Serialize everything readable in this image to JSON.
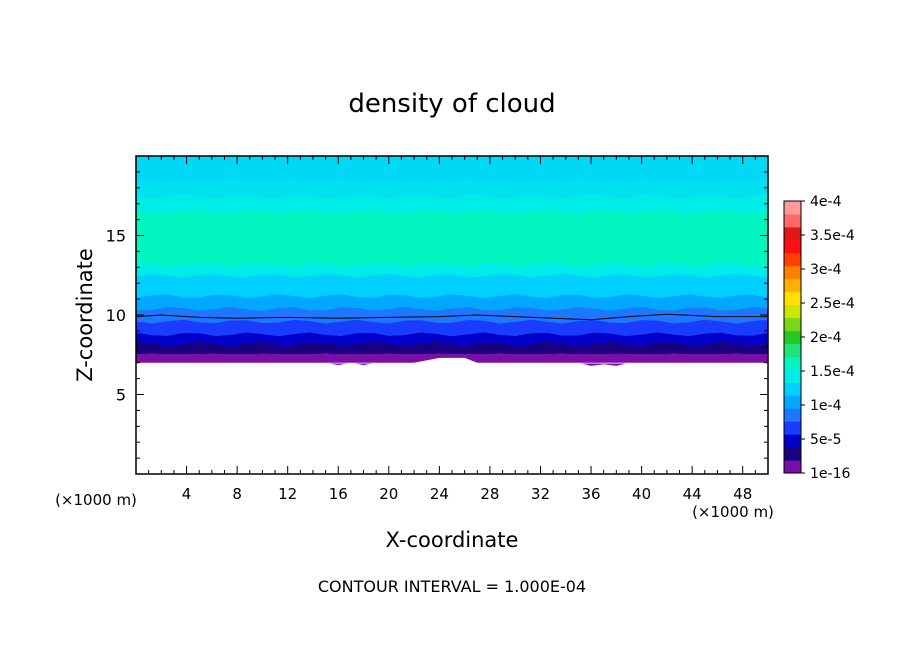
{
  "chart_data": {
    "type": "heatmap",
    "title": "density of cloud",
    "xlabel": "X-coordinate",
    "ylabel": "Z-coordinate",
    "x_unit_label": "(×1000 m)",
    "y_unit_label": "(×1000 m)",
    "x_ticks": [
      "4",
      "8",
      "12",
      "16",
      "20",
      "24",
      "28",
      "32",
      "36",
      "40",
      "44",
      "48"
    ],
    "x_tick_values": [
      4,
      8,
      12,
      16,
      20,
      24,
      28,
      32,
      36,
      40,
      44,
      48
    ],
    "y_ticks": [
      "5",
      "10",
      "15"
    ],
    "y_tick_values": [
      5,
      10,
      15
    ],
    "xlim": [
      0,
      50
    ],
    "ylim": [
      0,
      20
    ],
    "footer": "CONTOUR INTERVAL = 1.000E-04",
    "colorbar": {
      "tick_labels": [
        "1e-16",
        "5e-5",
        "1e-4",
        "1.5e-4",
        "2e-4",
        "2.5e-4",
        "3e-4",
        "3.5e-4",
        "4e-4"
      ],
      "tick_values": [
        1e-16,
        5e-05,
        0.0001,
        0.00015,
        0.0002,
        0.00025,
        0.0003,
        0.00035,
        0.0004
      ],
      "colors": [
        "#7a0fa8",
        "#1a0080",
        "#0000c8",
        "#1a3cff",
        "#1e78ff",
        "#00a8ff",
        "#00d0ff",
        "#00ece6",
        "#00f5c0",
        "#22e07a",
        "#26c826",
        "#7ad61a",
        "#cce600",
        "#ffe000",
        "#ffb000",
        "#ff8000",
        "#ff4000",
        "#ff1010",
        "#e01818",
        "#ff6a6a",
        "#ff9a9a"
      ]
    },
    "bands": [
      {
        "z_low": 7.0,
        "z_high": 7.5,
        "color": "#7a0fa8"
      },
      {
        "z_low": 7.5,
        "z_high": 8.2,
        "color": "#1a0080"
      },
      {
        "z_low": 8.2,
        "z_high": 8.8,
        "color": "#0000c8"
      },
      {
        "z_low": 8.8,
        "z_high": 9.6,
        "color": "#1a3cff"
      },
      {
        "z_low": 9.6,
        "z_high": 10.4,
        "color": "#1e78ff"
      },
      {
        "z_low": 10.4,
        "z_high": 11.2,
        "color": "#00a8ff"
      },
      {
        "z_low": 11.2,
        "z_high": 12.5,
        "color": "#00d0ff"
      },
      {
        "z_low": 12.5,
        "z_high": 13.2,
        "color": "#00ece6"
      },
      {
        "z_low": 13.2,
        "z_high": 16.5,
        "color": "#00f5c0"
      },
      {
        "z_low": 16.5,
        "z_high": 17.5,
        "color": "#00ece6"
      },
      {
        "z_low": 17.5,
        "z_high": 18.5,
        "color": "#00e0f0"
      },
      {
        "z_low": 18.5,
        "z_high": 20.0,
        "color": "#00d8f5"
      }
    ],
    "contour_line": {
      "level": 0.0001,
      "z": [
        9.9,
        10.0,
        9.85,
        9.8,
        9.85,
        9.8,
        9.85,
        9.9,
        10.0,
        9.9,
        9.8,
        9.7,
        9.9,
        10.05,
        9.9,
        9.9
      ],
      "x": [
        0,
        2,
        5,
        8,
        12,
        16,
        20,
        24,
        27,
        30,
        33,
        36,
        39,
        42,
        46,
        50
      ]
    },
    "cloud_base": {
      "x": [
        0,
        2,
        4,
        6,
        8,
        10,
        12,
        14,
        15,
        16,
        17,
        18,
        19,
        20,
        22,
        24,
        25,
        26,
        27,
        28,
        30,
        32,
        34,
        35,
        36,
        37,
        38,
        39,
        40,
        42,
        44,
        46,
        48,
        50
      ],
      "z": [
        7.0,
        7.0,
        7.0,
        7.0,
        7.0,
        7.0,
        7.0,
        7.0,
        7.0,
        6.85,
        7.0,
        6.85,
        7.0,
        7.0,
        7.0,
        7.3,
        7.3,
        7.3,
        7.0,
        7.0,
        7.0,
        7.0,
        7.0,
        7.0,
        6.8,
        6.9,
        6.8,
        7.0,
        7.0,
        7.0,
        7.0,
        7.0,
        7.0,
        7.0
      ]
    }
  }
}
